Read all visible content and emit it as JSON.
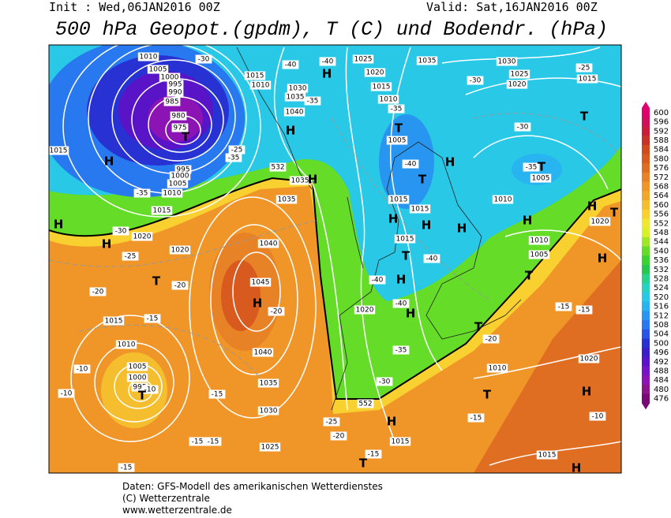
{
  "header": {
    "init": "Init : Wed,06JAN2016 00Z",
    "valid": "Valid: Sat,16JAN2016 00Z",
    "title": "500 hPa Geopot.(gpdm), T (C) und Bodendr. (hPa)"
  },
  "colorbar": {
    "values": [
      600,
      596,
      592,
      588,
      584,
      580,
      576,
      572,
      568,
      564,
      560,
      556,
      552,
      548,
      544,
      540,
      536,
      532,
      528,
      524,
      520,
      516,
      512,
      508,
      504,
      500,
      496,
      492,
      488,
      484,
      480,
      476
    ],
    "colors": [
      "#e0006e",
      "#d0105a",
      "#c81e3c",
      "#c83228",
      "#d04a1e",
      "#d85a1e",
      "#e06e22",
      "#e88226",
      "#f09628",
      "#f0a82a",
      "#f5be2e",
      "#f8d030",
      "#f0e830",
      "#d8f028",
      "#a0e628",
      "#64dc28",
      "#3cd232",
      "#28c850",
      "#28d28c",
      "#28d2c0",
      "#28c8e6",
      "#28b4f0",
      "#2896f0",
      "#2878f0",
      "#2855e6",
      "#2832d2",
      "#3c1ec8",
      "#5a14c8",
      "#7814c8",
      "#8c14b4",
      "#8c148c",
      "#780a78"
    ]
  },
  "map": {
    "labels": [
      "1010",
      "1005",
      "1000",
      "995",
      "990",
      "985",
      "980",
      "975",
      "T",
      "H",
      "1015",
      "-35",
      "995",
      "1000",
      "1005",
      "1010",
      "1015",
      "-30",
      "1020",
      "H",
      "H",
      "-25",
      "1020",
      "-30",
      "-40",
      "1015",
      "1010",
      "1030",
      "1035",
      "-35",
      "1040",
      "H",
      "-25",
      "-35",
      "532",
      "1035",
      "1035",
      "H",
      "H",
      "-40",
      "1025",
      "1020",
      "1015",
      "1010",
      "-35",
      "T",
      "1005",
      "-40",
      "T",
      "H",
      "1015",
      "1015",
      "H",
      "H",
      "1015",
      "T",
      "-40",
      "H",
      "1035",
      "1030",
      "1025",
      "1020",
      "-30",
      "-30",
      "T",
      "-25",
      "1015",
      "-35",
      "T",
      "1005",
      "1010",
      "H",
      "H",
      "T",
      "1020",
      "1010",
      "1005",
      "H",
      "T",
      "-40",
      "H",
      "1020",
      "-40",
      "H",
      "-35",
      "-30",
      "T",
      "-20",
      "1010",
      "-15",
      "-15",
      "1020",
      "H",
      "T",
      "-10",
      "-15",
      "H",
      "1015",
      "-15",
      "T",
      "552",
      "1015",
      "H",
      "1040",
      "T",
      "-20",
      "-20",
      "1045",
      "H",
      "-20",
      "1015",
      "-15",
      "1010",
      "1040",
      "-10",
      "1005",
      "1000",
      "995",
      "-10",
      "T",
      "-10",
      "1035",
      "-15",
      "1030",
      "-25",
      "-20",
      "-15",
      "-15",
      "1025",
      "-15"
    ]
  },
  "footer": {
    "line1": "Daten: GFS-Modell des amerikanischen Wetterdienstes",
    "line2": "(C) Wetterzentrale",
    "line3": "www.wetterzentrale.de"
  }
}
